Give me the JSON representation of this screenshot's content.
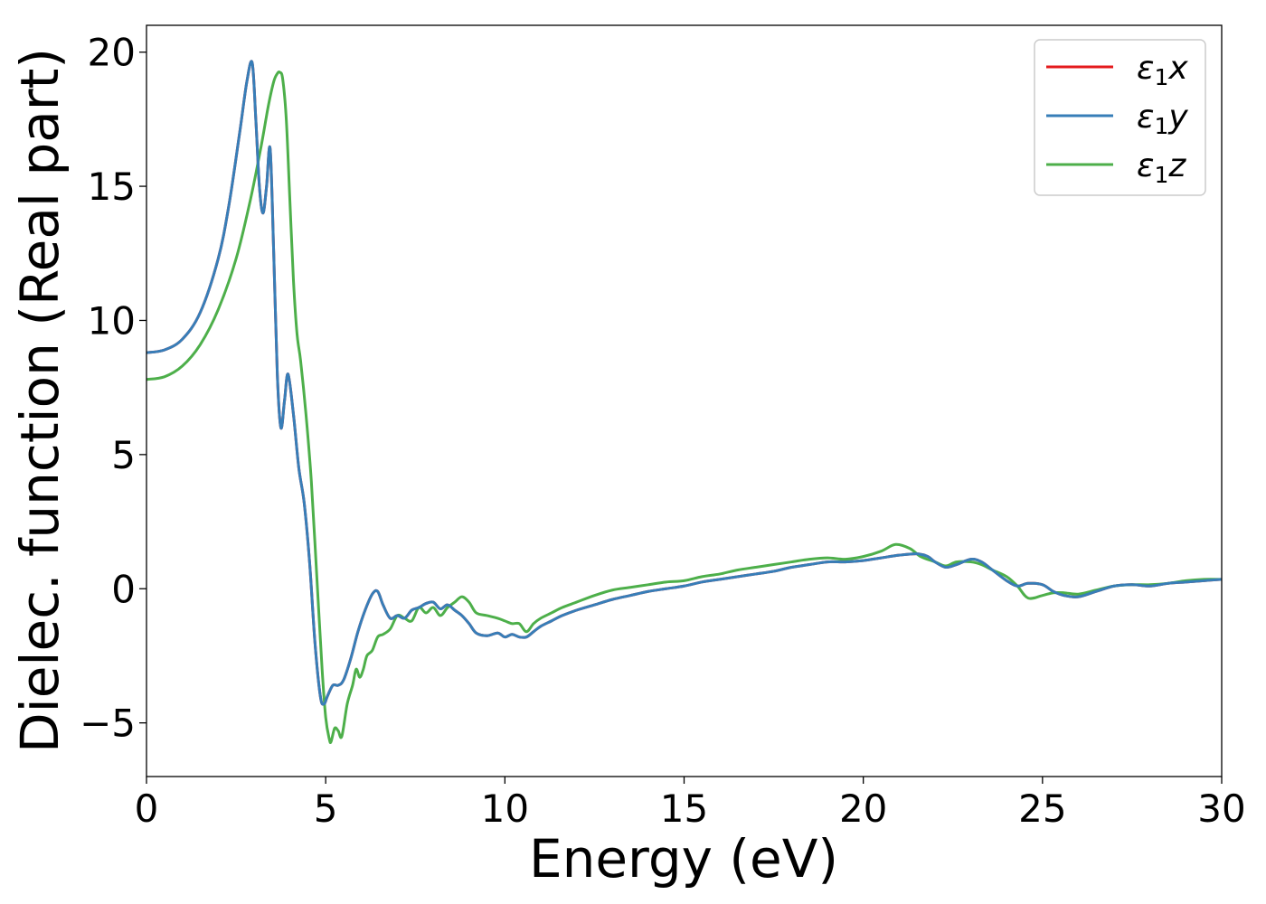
{
  "chart_data": {
    "type": "line",
    "xlabel": "Energy (eV)",
    "ylabel": "Dielec. function (Real part)",
    "xlim": [
      0,
      30
    ],
    "ylim": [
      -7,
      21
    ],
    "xticks": [
      0,
      5,
      10,
      15,
      20,
      25,
      30
    ],
    "yticks": [
      -5,
      0,
      5,
      10,
      15,
      20
    ],
    "xtick_labels": [
      "0",
      "5",
      "10",
      "15",
      "20",
      "25",
      "30"
    ],
    "ytick_labels": [
      "−5",
      "0",
      "5",
      "10",
      "15",
      "20"
    ],
    "grid": false,
    "legend": {
      "position": "top-right",
      "entries": [
        {
          "symbol": "ε",
          "sub": "1",
          "axis": "x"
        },
        {
          "symbol": "ε",
          "sub": "1",
          "axis": "y"
        },
        {
          "symbol": "ε",
          "sub": "1",
          "axis": "z"
        }
      ]
    },
    "series": [
      {
        "color": "#e41a1c",
        "x": [
          0,
          0.5,
          1.0,
          1.5,
          2.0,
          2.3,
          2.6,
          2.8,
          2.95,
          3.05,
          3.15,
          3.25,
          3.35,
          3.45,
          3.55,
          3.65,
          3.75,
          3.85,
          3.95,
          4.1,
          4.25,
          4.4,
          4.55,
          4.7,
          4.85,
          4.95,
          5.05,
          5.2,
          5.35,
          5.5,
          5.7,
          5.9,
          6.1,
          6.3,
          6.45,
          6.6,
          6.8,
          7.0,
          7.2,
          7.4,
          7.6,
          7.8,
          8.0,
          8.2,
          8.4,
          8.6,
          8.8,
          9.0,
          9.2,
          9.5,
          9.8,
          10.0,
          10.2,
          10.4,
          10.6,
          10.8,
          11.0,
          11.3,
          11.6,
          12.0,
          12.5,
          13.0,
          13.5,
          14.0,
          14.5,
          15.0,
          15.5,
          16.0,
          16.5,
          17.0,
          17.5,
          18.0,
          18.5,
          19.0,
          19.5,
          20.0,
          20.5,
          21.0,
          21.5,
          21.8,
          22.0,
          22.3,
          22.6,
          23.0,
          23.3,
          23.6,
          24.0,
          24.3,
          24.6,
          25.0,
          25.3,
          25.6,
          26.0,
          26.5,
          27.0,
          27.5,
          28.0,
          28.5,
          29.0,
          29.5,
          30.0
        ],
        "y": [
          8.8,
          8.9,
          9.3,
          10.3,
          12.3,
          14.3,
          17.0,
          18.9,
          19.6,
          17.5,
          15.0,
          14.0,
          15.0,
          16.4,
          12.5,
          8.0,
          6.0,
          7.0,
          8.0,
          6.5,
          4.5,
          3.2,
          1.0,
          -2.0,
          -4.0,
          -4.3,
          -4.0,
          -3.6,
          -3.6,
          -3.4,
          -2.6,
          -1.6,
          -0.8,
          -0.2,
          -0.1,
          -0.6,
          -1.1,
          -1.0,
          -1.1,
          -0.8,
          -0.7,
          -0.55,
          -0.5,
          -0.75,
          -0.6,
          -0.8,
          -1.0,
          -1.3,
          -1.65,
          -1.75,
          -1.65,
          -1.8,
          -1.7,
          -1.8,
          -1.8,
          -1.6,
          -1.4,
          -1.2,
          -1.0,
          -0.8,
          -0.6,
          -0.4,
          -0.25,
          -0.1,
          0.0,
          0.1,
          0.25,
          0.35,
          0.45,
          0.55,
          0.65,
          0.8,
          0.9,
          1.0,
          1.0,
          1.05,
          1.15,
          1.25,
          1.3,
          1.2,
          1.0,
          0.8,
          0.9,
          1.1,
          1.0,
          0.7,
          0.3,
          0.1,
          0.2,
          0.15,
          -0.1,
          -0.25,
          -0.3,
          -0.1,
          0.1,
          0.15,
          0.1,
          0.2,
          0.25,
          0.3,
          0.35
        ]
      },
      {
        "color": "#377eb8",
        "x": [
          0,
          0.5,
          1.0,
          1.5,
          2.0,
          2.3,
          2.6,
          2.8,
          2.95,
          3.05,
          3.15,
          3.25,
          3.35,
          3.45,
          3.55,
          3.65,
          3.75,
          3.85,
          3.95,
          4.1,
          4.25,
          4.4,
          4.55,
          4.7,
          4.85,
          4.95,
          5.05,
          5.2,
          5.35,
          5.5,
          5.7,
          5.9,
          6.1,
          6.3,
          6.45,
          6.6,
          6.8,
          7.0,
          7.2,
          7.4,
          7.6,
          7.8,
          8.0,
          8.2,
          8.4,
          8.6,
          8.8,
          9.0,
          9.2,
          9.5,
          9.8,
          10.0,
          10.2,
          10.4,
          10.6,
          10.8,
          11.0,
          11.3,
          11.6,
          12.0,
          12.5,
          13.0,
          13.5,
          14.0,
          14.5,
          15.0,
          15.5,
          16.0,
          16.5,
          17.0,
          17.5,
          18.0,
          18.5,
          19.0,
          19.5,
          20.0,
          20.5,
          21.0,
          21.5,
          21.8,
          22.0,
          22.3,
          22.6,
          23.0,
          23.3,
          23.6,
          24.0,
          24.3,
          24.6,
          25.0,
          25.3,
          25.6,
          26.0,
          26.5,
          27.0,
          27.5,
          28.0,
          28.5,
          29.0,
          29.5,
          30.0
        ],
        "y": [
          8.8,
          8.9,
          9.3,
          10.3,
          12.3,
          14.3,
          17.0,
          18.9,
          19.6,
          17.5,
          15.0,
          14.0,
          15.0,
          16.4,
          12.5,
          8.0,
          6.0,
          7.0,
          8.0,
          6.5,
          4.5,
          3.2,
          1.0,
          -2.0,
          -4.0,
          -4.3,
          -4.0,
          -3.6,
          -3.6,
          -3.4,
          -2.6,
          -1.6,
          -0.8,
          -0.2,
          -0.1,
          -0.6,
          -1.1,
          -1.0,
          -1.1,
          -0.8,
          -0.7,
          -0.55,
          -0.5,
          -0.75,
          -0.6,
          -0.8,
          -1.0,
          -1.3,
          -1.65,
          -1.75,
          -1.65,
          -1.8,
          -1.7,
          -1.8,
          -1.8,
          -1.6,
          -1.4,
          -1.2,
          -1.0,
          -0.8,
          -0.6,
          -0.4,
          -0.25,
          -0.1,
          0.0,
          0.1,
          0.25,
          0.35,
          0.45,
          0.55,
          0.65,
          0.8,
          0.9,
          1.0,
          1.0,
          1.05,
          1.15,
          1.25,
          1.3,
          1.2,
          1.0,
          0.8,
          0.9,
          1.1,
          1.0,
          0.7,
          0.3,
          0.1,
          0.2,
          0.15,
          -0.1,
          -0.25,
          -0.3,
          -0.1,
          0.1,
          0.15,
          0.1,
          0.2,
          0.25,
          0.3,
          0.35
        ]
      },
      {
        "color": "#4daf4a",
        "x": [
          0,
          0.5,
          1.0,
          1.5,
          2.0,
          2.5,
          2.9,
          3.2,
          3.4,
          3.55,
          3.65,
          3.72,
          3.8,
          3.9,
          4.0,
          4.1,
          4.2,
          4.3,
          4.45,
          4.6,
          4.75,
          4.9,
          5.0,
          5.1,
          5.15,
          5.25,
          5.35,
          5.45,
          5.6,
          5.75,
          5.85,
          5.95,
          6.05,
          6.15,
          6.3,
          6.45,
          6.6,
          6.8,
          7.0,
          7.2,
          7.4,
          7.6,
          7.8,
          8.0,
          8.2,
          8.4,
          8.6,
          8.8,
          9.0,
          9.2,
          9.5,
          9.8,
          10.0,
          10.2,
          10.4,
          10.6,
          10.8,
          11.0,
          11.3,
          11.6,
          12.0,
          12.5,
          13.0,
          13.5,
          14.0,
          14.5,
          15.0,
          15.5,
          16.0,
          16.5,
          17.0,
          17.5,
          18.0,
          18.5,
          19.0,
          19.5,
          20.0,
          20.5,
          20.9,
          21.3,
          21.6,
          22.0,
          22.3,
          22.6,
          23.0,
          23.3,
          23.6,
          24.0,
          24.3,
          24.6,
          25.0,
          25.3,
          25.6,
          26.0,
          26.5,
          27.0,
          27.5,
          28.0,
          28.5,
          29.0,
          29.5,
          30.0
        ],
        "y": [
          7.8,
          7.9,
          8.3,
          9.1,
          10.4,
          12.3,
          14.5,
          16.5,
          18.0,
          18.9,
          19.2,
          19.25,
          19.0,
          17.5,
          14.5,
          11.5,
          9.5,
          8.5,
          6.5,
          4.0,
          0.5,
          -3.0,
          -4.8,
          -5.6,
          -5.7,
          -5.2,
          -5.3,
          -5.5,
          -4.3,
          -3.6,
          -3.0,
          -3.3,
          -3.0,
          -2.5,
          -2.3,
          -1.8,
          -1.7,
          -1.5,
          -1.0,
          -1.1,
          -1.2,
          -0.7,
          -0.9,
          -0.7,
          -1.0,
          -0.7,
          -0.5,
          -0.3,
          -0.5,
          -0.9,
          -1.0,
          -1.1,
          -1.2,
          -1.3,
          -1.3,
          -1.6,
          -1.3,
          -1.1,
          -0.9,
          -0.7,
          -0.5,
          -0.25,
          -0.05,
          0.05,
          0.15,
          0.25,
          0.3,
          0.45,
          0.55,
          0.7,
          0.8,
          0.9,
          1.0,
          1.1,
          1.15,
          1.1,
          1.2,
          1.4,
          1.65,
          1.5,
          1.2,
          1.0,
          0.85,
          1.0,
          1.0,
          0.9,
          0.7,
          0.45,
          0.1,
          -0.35,
          -0.25,
          -0.15,
          -0.15,
          -0.2,
          -0.05,
          0.1,
          0.15,
          0.15,
          0.2,
          0.3,
          0.35,
          0.35
        ]
      }
    ]
  }
}
